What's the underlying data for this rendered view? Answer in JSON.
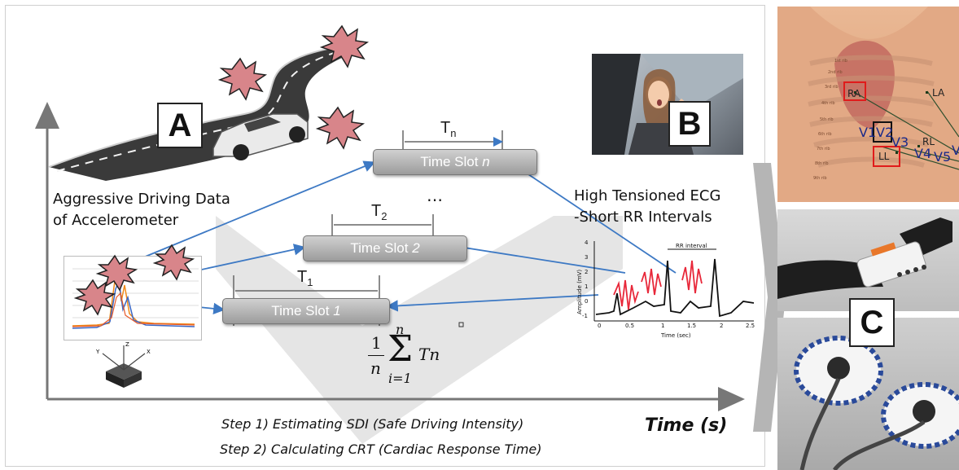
{
  "labels": {
    "a": "A",
    "b": "B",
    "c": "C"
  },
  "left_caption": [
    "Aggressive Driving Data",
    "of Accelerometer"
  ],
  "right_caption": [
    "High Tensioned ECG",
    "-Short RR Intervals"
  ],
  "slots": [
    {
      "text": "Time Slot ",
      "index": "n",
      "tlabel": "T",
      "tsub": "n"
    },
    {
      "text": "Time Slot ",
      "index": "2",
      "tlabel": "T",
      "tsub": "2"
    },
    {
      "text": "Time Slot ",
      "index": "1",
      "tlabel": "T",
      "tsub": "1"
    }
  ],
  "ellipsis": "…",
  "formula": {
    "frac_num": "1",
    "frac_den": "n",
    "sum_top": "n",
    "sum_bottom": "i=1",
    "term": "Tn"
  },
  "steps": [
    "Step 1) Estimating SDI (Safe Driving Intensity)",
    "Step 2) Calculating CRT (Cardiac Response Time)"
  ],
  "time_axis": "Time (s)",
  "ecg": {
    "rr_label": "RR interval",
    "ylabel": "Amplitude (mV)",
    "xlabel": "Time (sec)",
    "yticks": [
      "4",
      "3",
      "2",
      "1",
      "0",
      "-1"
    ],
    "xticks": [
      "0",
      "0.5",
      "1",
      "1.5",
      "2",
      "2.5"
    ]
  },
  "accel_axes": {
    "x": "X",
    "y": "Y",
    "z": "Z"
  },
  "electrodes": {
    "ra": "RA",
    "la": "LA",
    "ll": "LL",
    "rl": "RL",
    "v1": "V1",
    "v2": "V2",
    "v3": "V3",
    "v4": "V4",
    "v5": "V5",
    "v6": "V"
  },
  "ribs": [
    "1st rib",
    "2nd rib",
    "3rd rib",
    "4th rib",
    "5th rib",
    "6th rib",
    "7th rib",
    "8th rib",
    "9th rib"
  ],
  "colors": {
    "arrow": "#3d79c4",
    "slot": "#a8a8a8",
    "burst": "#d8858a",
    "ecg_red": "#e8283a"
  }
}
